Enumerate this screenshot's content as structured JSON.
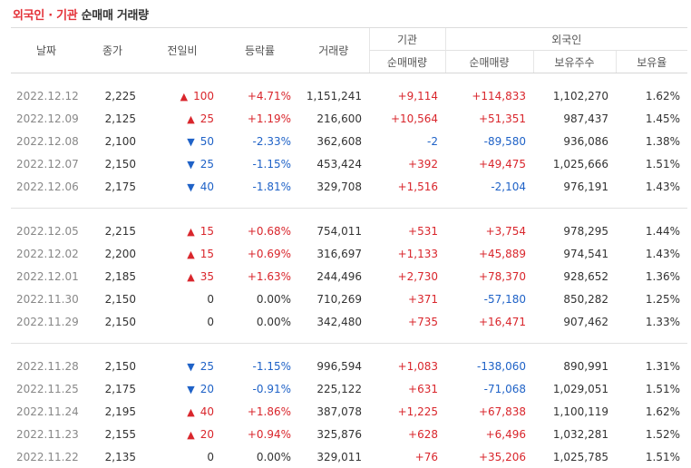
{
  "title": {
    "foreign": "외국인",
    "separator": " · ",
    "institution": "기관",
    "rest": " 순매매 거래량"
  },
  "headers": {
    "date": "날짜",
    "close": "종가",
    "change": "전일비",
    "rate": "등락률",
    "volume": "거래량",
    "institution_group": "기관",
    "institution_net": "순매매량",
    "foreign_group": "외국인",
    "foreign_net": "순매매량",
    "foreign_holdings": "보유주수",
    "foreign_ratio": "보유율"
  },
  "colors": {
    "up": "#d9262c",
    "down": "#1f62c7",
    "accent": "#e4333a"
  },
  "groups": [
    {
      "rows": [
        {
          "date": "2022.12.12",
          "close": "2,225",
          "dir": "up",
          "change": "100",
          "rate": "+4.71%",
          "volume": "1,151,241",
          "inst": "+9,114",
          "foreign": "+114,833",
          "holdings": "1,102,270",
          "ratio": "1.62%"
        },
        {
          "date": "2022.12.09",
          "close": "2,125",
          "dir": "up",
          "change": "25",
          "rate": "+1.19%",
          "volume": "216,600",
          "inst": "+10,564",
          "foreign": "+51,351",
          "holdings": "987,437",
          "ratio": "1.45%"
        },
        {
          "date": "2022.12.08",
          "close": "2,100",
          "dir": "down",
          "change": "50",
          "rate": "-2.33%",
          "volume": "362,608",
          "inst": "-2",
          "foreign": "-89,580",
          "holdings": "936,086",
          "ratio": "1.38%"
        },
        {
          "date": "2022.12.07",
          "close": "2,150",
          "dir": "down",
          "change": "25",
          "rate": "-1.15%",
          "volume": "453,424",
          "inst": "+392",
          "foreign": "+49,475",
          "holdings": "1,025,666",
          "ratio": "1.51%"
        },
        {
          "date": "2022.12.06",
          "close": "2,175",
          "dir": "down",
          "change": "40",
          "rate": "-1.81%",
          "volume": "329,708",
          "inst": "+1,516",
          "foreign": "-2,104",
          "holdings": "976,191",
          "ratio": "1.43%"
        }
      ]
    },
    {
      "rows": [
        {
          "date": "2022.12.05",
          "close": "2,215",
          "dir": "up",
          "change": "15",
          "rate": "+0.68%",
          "volume": "754,011",
          "inst": "+531",
          "foreign": "+3,754",
          "holdings": "978,295",
          "ratio": "1.44%"
        },
        {
          "date": "2022.12.02",
          "close": "2,200",
          "dir": "up",
          "change": "15",
          "rate": "+0.69%",
          "volume": "316,697",
          "inst": "+1,133",
          "foreign": "+45,889",
          "holdings": "974,541",
          "ratio": "1.43%"
        },
        {
          "date": "2022.12.01",
          "close": "2,185",
          "dir": "up",
          "change": "35",
          "rate": "+1.63%",
          "volume": "244,496",
          "inst": "+2,730",
          "foreign": "+78,370",
          "holdings": "928,652",
          "ratio": "1.36%"
        },
        {
          "date": "2022.11.30",
          "close": "2,150",
          "dir": "flat",
          "change": "0",
          "rate": "0.00%",
          "volume": "710,269",
          "inst": "+371",
          "foreign": "-57,180",
          "holdings": "850,282",
          "ratio": "1.25%"
        },
        {
          "date": "2022.11.29",
          "close": "2,150",
          "dir": "flat",
          "change": "0",
          "rate": "0.00%",
          "volume": "342,480",
          "inst": "+735",
          "foreign": "+16,471",
          "holdings": "907,462",
          "ratio": "1.33%"
        }
      ]
    },
    {
      "rows": [
        {
          "date": "2022.11.28",
          "close": "2,150",
          "dir": "down",
          "change": "25",
          "rate": "-1.15%",
          "volume": "996,594",
          "inst": "+1,083",
          "foreign": "-138,060",
          "holdings": "890,991",
          "ratio": "1.31%"
        },
        {
          "date": "2022.11.25",
          "close": "2,175",
          "dir": "down",
          "change": "20",
          "rate": "-0.91%",
          "volume": "225,122",
          "inst": "+631",
          "foreign": "-71,068",
          "holdings": "1,029,051",
          "ratio": "1.51%"
        },
        {
          "date": "2022.11.24",
          "close": "2,195",
          "dir": "up",
          "change": "40",
          "rate": "+1.86%",
          "volume": "387,078",
          "inst": "+1,225",
          "foreign": "+67,838",
          "holdings": "1,100,119",
          "ratio": "1.62%"
        },
        {
          "date": "2022.11.23",
          "close": "2,155",
          "dir": "up",
          "change": "20",
          "rate": "+0.94%",
          "volume": "325,876",
          "inst": "+628",
          "foreign": "+6,496",
          "holdings": "1,032,281",
          "ratio": "1.52%"
        },
        {
          "date": "2022.11.22",
          "close": "2,135",
          "dir": "flat",
          "change": "0",
          "rate": "0.00%",
          "volume": "329,011",
          "inst": "+76",
          "foreign": "+35,206",
          "holdings": "1,025,785",
          "ratio": "1.51%"
        }
      ]
    }
  ]
}
